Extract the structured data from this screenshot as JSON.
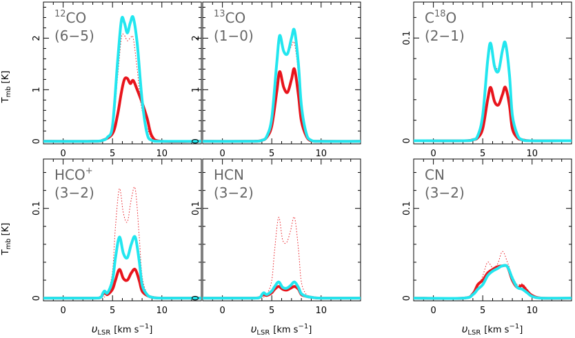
{
  "figure": {
    "ylabel": "T",
    "ylabel_sub": "mb",
    "ylabel_unit": "[K]",
    "xlabel_italic": "υ",
    "xlabel_sub": "LSR",
    "xlabel_unit": "[km s",
    "xlabel_sup": "−1",
    "xlabel_close": "]"
  },
  "colors": {
    "red": "#e8141c",
    "cyan": "#22e6ef",
    "dotted": "#e8141c"
  },
  "chart_data": [
    {
      "type": "line",
      "label": "CO",
      "label_sup": "12",
      "label_line2": "(6−5)",
      "xlim": [
        -2,
        14
      ],
      "ylim": [
        -0.05,
        2.7
      ],
      "xticks": [
        0,
        5,
        10
      ],
      "yticks": [
        0,
        1,
        2
      ],
      "ytick_labels": [
        "0",
        "1",
        "2"
      ],
      "series": [
        {
          "style": "dotted",
          "x": [
            3,
            4,
            5,
            5.5,
            5.9,
            6.2,
            6.5,
            6.8,
            7.1,
            7.5,
            8,
            9,
            10
          ],
          "y": [
            0,
            0.02,
            0.25,
            1.2,
            2.0,
            2.05,
            1.95,
            2.0,
            2.0,
            1.4,
            0.6,
            0.05,
            0
          ]
        },
        {
          "style": "red",
          "x": [
            3,
            4,
            5,
            5.5,
            5.9,
            6.2,
            6.5,
            6.8,
            7.1,
            7.5,
            8,
            8.5,
            9,
            10
          ],
          "y": [
            0,
            0.02,
            0.15,
            0.5,
            0.95,
            1.2,
            1.22,
            1.12,
            1.18,
            1.0,
            0.75,
            0.45,
            0.1,
            0
          ]
        },
        {
          "style": "cyan",
          "x": [
            3,
            4,
            4.5,
            5,
            5.5,
            5.9,
            6.2,
            6.5,
            6.8,
            7.1,
            7.5,
            8,
            8.5,
            9,
            10
          ],
          "y": [
            0,
            0.02,
            0.08,
            0.3,
            1.5,
            2.35,
            2.3,
            2.1,
            2.3,
            2.4,
            1.9,
            0.8,
            0.15,
            0.02,
            0
          ]
        }
      ]
    },
    {
      "type": "line",
      "label": "CO",
      "label_sup": "13",
      "label_line2": "(1−0)",
      "xlim": [
        -2,
        14
      ],
      "ylim": [
        -0.05,
        2.7
      ],
      "xticks": [
        0,
        5,
        10
      ],
      "yticks": [
        0,
        1,
        2
      ],
      "ytick_labels": [
        "0",
        "1",
        "2"
      ],
      "series": [
        {
          "style": "dotted",
          "x": [
            3,
            4,
            4.5,
            5,
            5.5,
            5.8,
            6.2,
            6.6,
            7.0,
            7.3,
            7.7,
            8,
            8.5,
            9,
            10
          ],
          "y": [
            0,
            0.02,
            0.1,
            0.4,
            1.4,
            1.9,
            1.75,
            1.7,
            1.85,
            1.9,
            1.3,
            0.6,
            0.15,
            0.02,
            0
          ]
        },
        {
          "style": "red",
          "x": [
            3,
            4,
            4.5,
            5,
            5.5,
            5.8,
            6.2,
            6.6,
            7.0,
            7.3,
            7.7,
            8,
            8.5,
            9,
            10
          ],
          "y": [
            0,
            0.02,
            0.08,
            0.3,
            0.95,
            1.35,
            1.05,
            0.95,
            1.2,
            1.4,
            0.9,
            0.4,
            0.1,
            0.01,
            0
          ]
        },
        {
          "style": "cyan",
          "x": [
            3,
            4,
            4.5,
            5,
            5.5,
            5.8,
            6.2,
            6.6,
            7.0,
            7.3,
            7.7,
            8,
            8.5,
            9,
            10
          ],
          "y": [
            0,
            0.02,
            0.1,
            0.45,
            1.5,
            2.05,
            1.75,
            1.7,
            2.0,
            2.15,
            1.5,
            0.7,
            0.15,
            0.02,
            0
          ]
        }
      ]
    },
    {
      "type": "line",
      "label": "C",
      "label_sup": "18",
      "label_after": "O",
      "label_line2": "(2−1)",
      "xlim": [
        -2,
        14
      ],
      "ylim": [
        -0.003,
        0.135
      ],
      "xticks": [
        0,
        5,
        10
      ],
      "yticks": [
        0,
        0.1
      ],
      "ytick_labels": [
        "0",
        "0.1"
      ],
      "series": [
        {
          "style": "dotted",
          "x": [
            3,
            4,
            4.5,
            5,
            5.5,
            5.8,
            6.2,
            6.6,
            7.0,
            7.3,
            7.7,
            8,
            8.5,
            9,
            10
          ],
          "y": [
            0,
            0.001,
            0.004,
            0.02,
            0.07,
            0.09,
            0.075,
            0.07,
            0.085,
            0.09,
            0.06,
            0.025,
            0.005,
            0.001,
            0
          ]
        },
        {
          "style": "red",
          "x": [
            3,
            4,
            4.5,
            5,
            5.5,
            5.8,
            6.2,
            6.6,
            7.0,
            7.3,
            7.7,
            8,
            8.5,
            9,
            10
          ],
          "y": [
            0,
            0.001,
            0.003,
            0.012,
            0.04,
            0.052,
            0.038,
            0.035,
            0.045,
            0.052,
            0.035,
            0.012,
            0.003,
            0.001,
            0
          ]
        },
        {
          "style": "cyan",
          "x": [
            3,
            4,
            4.5,
            5,
            5.5,
            5.8,
            6.2,
            6.6,
            7.0,
            7.3,
            7.7,
            8,
            8.5,
            9,
            10
          ],
          "y": [
            0,
            0.001,
            0.005,
            0.025,
            0.078,
            0.095,
            0.072,
            0.068,
            0.088,
            0.095,
            0.065,
            0.025,
            0.006,
            0.001,
            0
          ]
        }
      ]
    },
    {
      "type": "line",
      "label": "HCO",
      "label_sup": "+",
      "label_line2": "(3−2)",
      "xlim": [
        -2,
        14
      ],
      "ylim": [
        -0.003,
        0.155
      ],
      "xticks": [
        0,
        5,
        10
      ],
      "yticks": [
        0,
        0.1
      ],
      "ytick_labels": [
        "0",
        "0.1"
      ],
      "series": [
        {
          "style": "dotted",
          "x": [
            3,
            4,
            4.5,
            5,
            5.3,
            5.7,
            6.1,
            6.5,
            6.9,
            7.3,
            7.7,
            8,
            8.5,
            9,
            10
          ],
          "y": [
            0,
            0.001,
            0.005,
            0.03,
            0.08,
            0.122,
            0.095,
            0.085,
            0.11,
            0.122,
            0.07,
            0.025,
            0.005,
            0.001,
            0
          ]
        },
        {
          "style": "red",
          "x": [
            3,
            3.8,
            4,
            4.2,
            4.5,
            5,
            5.3,
            5.7,
            6.1,
            6.5,
            6.9,
            7.3,
            7.7,
            8,
            8.5,
            9,
            10
          ],
          "y": [
            0,
            0.001,
            0.004,
            0.006,
            0.004,
            0.01,
            0.02,
            0.032,
            0.022,
            0.02,
            0.028,
            0.032,
            0.02,
            0.008,
            0.003,
            0.001,
            0
          ]
        },
        {
          "style": "cyan",
          "x": [
            3,
            3.8,
            4,
            4.2,
            4.5,
            5,
            5.3,
            5.7,
            6.1,
            6.5,
            6.9,
            7.3,
            7.7,
            8,
            8.5,
            9,
            10
          ],
          "y": [
            0,
            0.001,
            0.005,
            0.008,
            0.006,
            0.02,
            0.045,
            0.068,
            0.05,
            0.045,
            0.06,
            0.068,
            0.042,
            0.015,
            0.004,
            0.001,
            0
          ]
        }
      ]
    },
    {
      "type": "line",
      "label": "HCN",
      "label_sup": "",
      "label_line2": "(3−2)",
      "xlim": [
        -2,
        14
      ],
      "ylim": [
        -0.003,
        0.155
      ],
      "xticks": [
        0,
        5,
        10
      ],
      "yticks": [
        0,
        0.1
      ],
      "ytick_labels": [
        "0",
        "0.1"
      ],
      "series": [
        {
          "style": "dotted",
          "x": [
            3,
            4,
            4.5,
            5,
            5.3,
            5.7,
            6.1,
            6.5,
            6.9,
            7.3,
            7.7,
            8,
            8.5,
            9,
            10
          ],
          "y": [
            0,
            0.001,
            0.004,
            0.02,
            0.055,
            0.09,
            0.065,
            0.062,
            0.075,
            0.09,
            0.055,
            0.018,
            0.004,
            0.001,
            0
          ]
        },
        {
          "style": "red",
          "x": [
            3,
            3.8,
            4,
            4.2,
            4.5,
            5,
            5.3,
            5.7,
            6.1,
            6.5,
            6.9,
            7.3,
            7.7,
            8,
            8.5,
            9,
            10
          ],
          "y": [
            0,
            0.001,
            0.003,
            0.004,
            0.003,
            0.006,
            0.01,
            0.013,
            0.01,
            0.009,
            0.011,
            0.013,
            0.01,
            0.004,
            0.002,
            0.001,
            0
          ]
        },
        {
          "style": "cyan",
          "x": [
            3,
            3.8,
            4,
            4.2,
            4.5,
            5,
            5.3,
            5.7,
            6.1,
            6.5,
            6.9,
            7.3,
            7.7,
            8,
            8.5,
            9,
            10
          ],
          "y": [
            0,
            0.001,
            0.004,
            0.006,
            0.004,
            0.008,
            0.013,
            0.018,
            0.012,
            0.011,
            0.014,
            0.018,
            0.012,
            0.005,
            0.002,
            0.001,
            0
          ]
        }
      ]
    },
    {
      "type": "line",
      "label": "CN",
      "label_sup": "",
      "label_line2": "(3−2)",
      "xlim": [
        -2,
        14
      ],
      "ylim": [
        -0.003,
        0.155
      ],
      "xticks": [
        0,
        5,
        10
      ],
      "yticks": [
        0,
        0.1
      ],
      "ytick_labels": [
        "0",
        "0.1"
      ],
      "series": [
        {
          "style": "dotted",
          "x": [
            3,
            4,
            4.5,
            5,
            5.5,
            6,
            6.5,
            7,
            7.5,
            8,
            8.5,
            9,
            9.5,
            10,
            11
          ],
          "y": [
            0,
            0.004,
            0.012,
            0.025,
            0.04,
            0.034,
            0.038,
            0.052,
            0.04,
            0.025,
            0.015,
            0.016,
            0.01,
            0.003,
            0
          ]
        },
        {
          "style": "red",
          "x": [
            3,
            4,
            4.5,
            5,
            5.5,
            6,
            6.5,
            7,
            7.5,
            8,
            8.5,
            9,
            9.5,
            10,
            11
          ],
          "y": [
            0,
            0.005,
            0.015,
            0.02,
            0.028,
            0.032,
            0.035,
            0.036,
            0.035,
            0.02,
            0.012,
            0.014,
            0.008,
            0.003,
            0
          ]
        },
        {
          "style": "cyan",
          "x": [
            3,
            4,
            4.5,
            5,
            5.5,
            6,
            6.5,
            7,
            7.5,
            8,
            8.5,
            9,
            9.5,
            10,
            11
          ],
          "y": [
            0,
            0.004,
            0.01,
            0.015,
            0.025,
            0.03,
            0.033,
            0.036,
            0.035,
            0.022,
            0.012,
            0.01,
            0.006,
            0.002,
            0
          ]
        }
      ]
    }
  ]
}
